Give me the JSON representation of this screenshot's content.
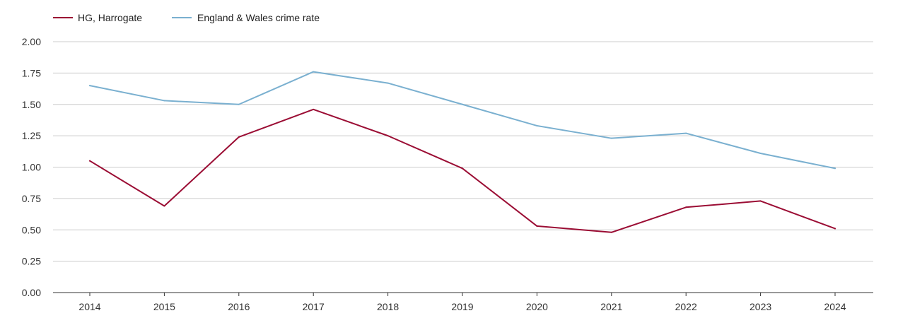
{
  "chart_data": {
    "type": "line",
    "title": "",
    "xlabel": "",
    "ylabel": "",
    "categories": [
      "2014",
      "2015",
      "2016",
      "2017",
      "2018",
      "2019",
      "2020",
      "2021",
      "2022",
      "2023",
      "2024"
    ],
    "ylim": [
      0,
      2
    ],
    "yticks": [
      "0.00",
      "0.25",
      "0.50",
      "0.75",
      "1.00",
      "1.25",
      "1.50",
      "1.75",
      "2.00"
    ],
    "grid": true,
    "legend_position": "top-left",
    "series": [
      {
        "name": "HG, Harrogate",
        "color": "#9b0d34",
        "values": [
          1.05,
          0.69,
          1.24,
          1.46,
          1.25,
          0.99,
          0.53,
          0.48,
          0.68,
          0.73,
          0.51
        ]
      },
      {
        "name": "England & Wales crime rate",
        "color": "#7ab0d0",
        "values": [
          1.65,
          1.53,
          1.5,
          1.76,
          1.67,
          1.5,
          1.33,
          1.23,
          1.27,
          1.11,
          0.99
        ]
      }
    ]
  }
}
